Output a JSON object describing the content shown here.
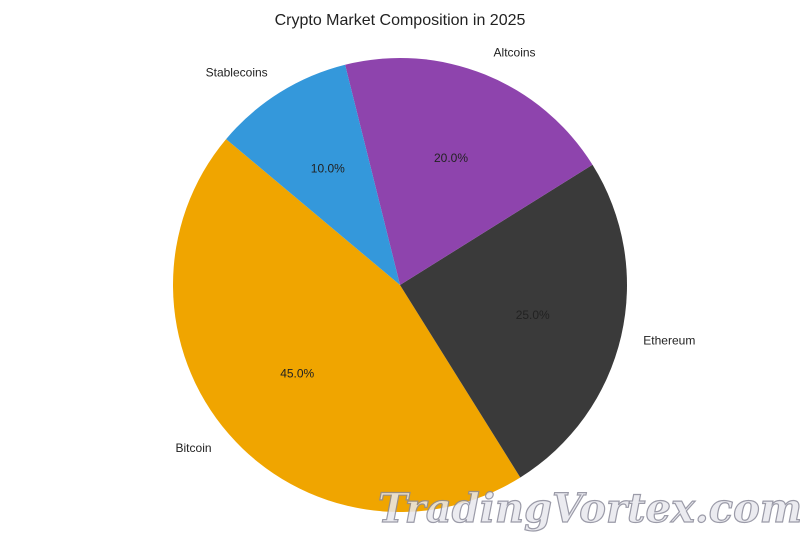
{
  "chart_data": {
    "type": "pie",
    "title": "Crypto Market Composition in 2025",
    "categories": [
      "Bitcoin",
      "Ethereum",
      "Altcoins",
      "Stablecoins"
    ],
    "values": [
      45,
      25,
      20,
      10
    ],
    "value_labels": [
      "45.0%",
      "25.0%",
      "20.0%",
      "10.0%"
    ],
    "colors": [
      "#f0a500",
      "#3a3a3a",
      "#8e44ad",
      "#3498db"
    ],
    "startangle": 140
  },
  "watermark": "TradingVortex.com"
}
